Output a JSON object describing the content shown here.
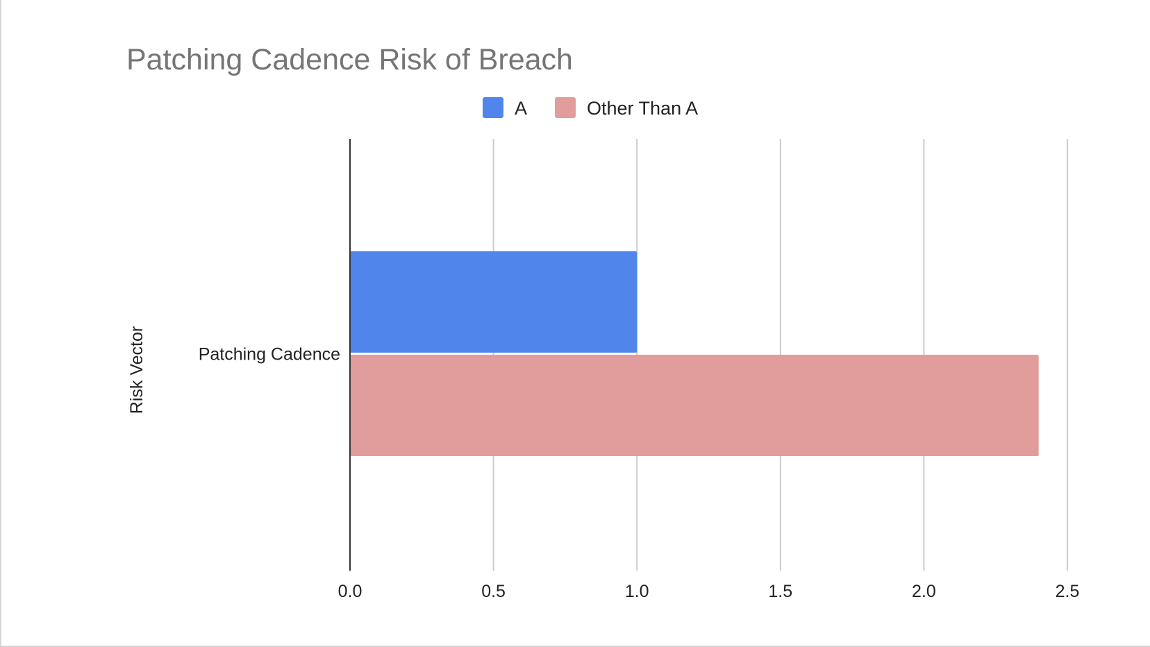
{
  "chart_data": {
    "type": "bar",
    "orientation": "horizontal",
    "title": "Patching Cadence Risk of Breach",
    "xlabel": "",
    "ylabel": "Risk Vector",
    "categories": [
      "Patching Cadence"
    ],
    "series": [
      {
        "name": "A",
        "values": [
          1.0
        ],
        "color": "#5086EC"
      },
      {
        "name": "Other Than A",
        "values": [
          2.4
        ],
        "color": "#E09D9B"
      }
    ],
    "xlim": [
      0,
      2.5
    ],
    "xticks": [
      "0.0",
      "0.5",
      "1.0",
      "1.5",
      "2.0",
      "2.5"
    ],
    "grid": "vertical",
    "legend_position": "top"
  }
}
